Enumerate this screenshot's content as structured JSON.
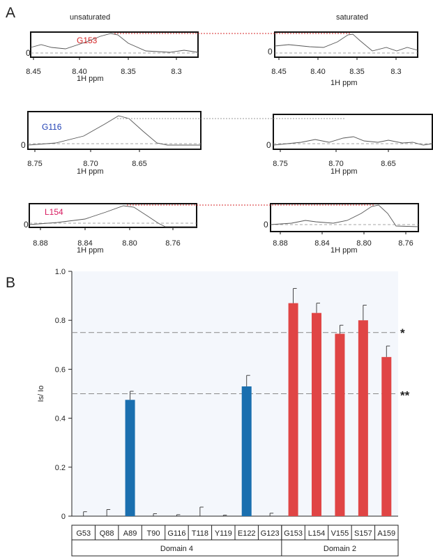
{
  "panels": {
    "a_label": "A",
    "b_label": "B",
    "unsaturated_label": "unsaturated",
    "saturated_label": "saturated",
    "zero_label": "0",
    "ppm_label": "1H ppm"
  },
  "spectra": [
    {
      "residue": "G153",
      "color": "#d62728",
      "unsat_ticks": [
        "8.45",
        "8.40",
        "8.35",
        "8.3"
      ],
      "sat_ticks": [
        "8.45",
        "8.40",
        "8.35",
        "8.3"
      ]
    },
    {
      "residue": "G116",
      "color": "#1f3fb4",
      "unsat_ticks": [
        "8.75",
        "8.70",
        "8.65"
      ],
      "sat_ticks": [
        "8.75",
        "8.70",
        "8.65"
      ]
    },
    {
      "residue": "L154",
      "color": "#d81b60",
      "unsat_ticks": [
        "8.88",
        "8.84",
        "8.80",
        "8.76"
      ],
      "sat_ticks": [
        "8.88",
        "8.84",
        "8.80",
        "8.76"
      ]
    }
  ],
  "chart_data": {
    "type": "bar",
    "ylabel": "Is/ Io",
    "ylim": [
      0,
      1.0
    ],
    "yticks": [
      "0",
      "0.2",
      "0.4",
      "0.6",
      "0.8",
      "1.0"
    ],
    "categories": [
      "G53",
      "Q88",
      "A89",
      "T90",
      "G116",
      "T118",
      "Y119",
      "E122",
      "G123",
      "G153",
      "L154",
      "V155",
      "S157",
      "A159"
    ],
    "values": [
      0,
      0,
      0.475,
      0,
      0,
      0,
      0,
      0.53,
      0,
      0.87,
      0.83,
      0.745,
      0.8,
      0.65
    ],
    "errors": [
      0.018,
      0.027,
      0.035,
      0.01,
      0.006,
      0.037,
      0.004,
      0.045,
      0.012,
      0.06,
      0.04,
      0.035,
      0.062,
      0.045
    ],
    "groups": [
      {
        "name": "Domain 4",
        "count": 9,
        "color": "#1a6faf"
      },
      {
        "name": "Domain 2",
        "count": 5,
        "color": "#e04545"
      }
    ],
    "thresholds": [
      {
        "value": 0.75,
        "marker": "*"
      },
      {
        "value": 0.5,
        "marker": "**"
      }
    ],
    "grid": false
  }
}
